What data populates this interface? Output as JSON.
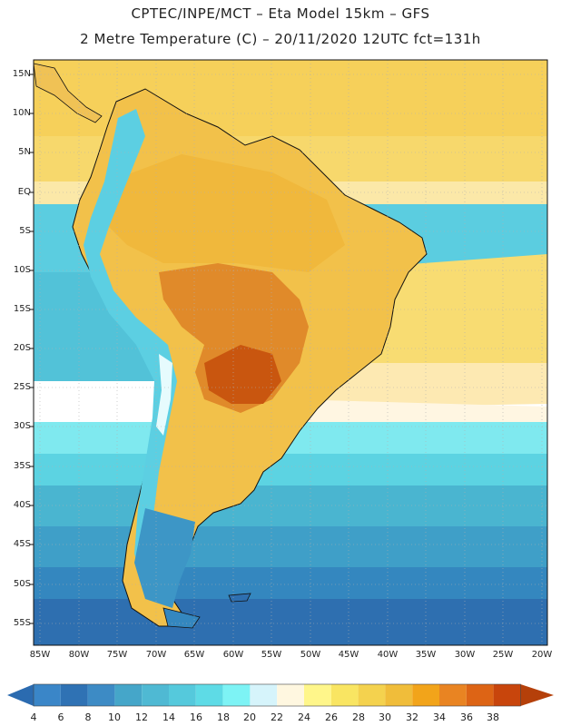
{
  "header": {
    "line1": "CPTEC/INPE/MCT –  Eta Model 15km – GFS",
    "line2": "2 Metre Temperature (C) – 20/11/2020 12UTC fct=131h"
  },
  "axes": {
    "lat_labels": [
      "15N",
      "10N",
      "5N",
      "EQ",
      "5S",
      "10S",
      "15S",
      "20S",
      "25S",
      "30S",
      "35S",
      "40S",
      "45S",
      "50S",
      "55S"
    ],
    "lon_labels": [
      "85W",
      "80W",
      "75W",
      "70W",
      "65W",
      "60W",
      "55W",
      "50W",
      "45W",
      "40W",
      "35W",
      "30W",
      "25W",
      "20W"
    ]
  },
  "colorbar": {
    "labels": [
      "4",
      "6",
      "8",
      "10",
      "12",
      "14",
      "16",
      "18",
      "20",
      "22",
      "24",
      "26",
      "28",
      "30",
      "32",
      "34",
      "36",
      "38"
    ],
    "colors": [
      "#3a86c8",
      "#2f72b4",
      "#3d8bc5",
      "#45a6c9",
      "#4fb9d3",
      "#55c9dc",
      "#5edbe6",
      "#7df3f5",
      "#d6f4fb",
      "#fff7e0",
      "#fff68a",
      "#f9e562",
      "#f4d24e",
      "#f0bd3a",
      "#f2a41a",
      "#e98422",
      "#dd6415",
      "#c8450c",
      "#b9400a"
    ],
    "left_arrow_color": "#2b6bb0",
    "right_arrow_color": "#b5400a"
  },
  "map": {
    "ocean_warm": "#f4cf55",
    "ocean_cool": "#4bb8d4",
    "land_hot": "#e08a2a",
    "land_mild": "#f2c14a",
    "border_color": "#111111"
  }
}
